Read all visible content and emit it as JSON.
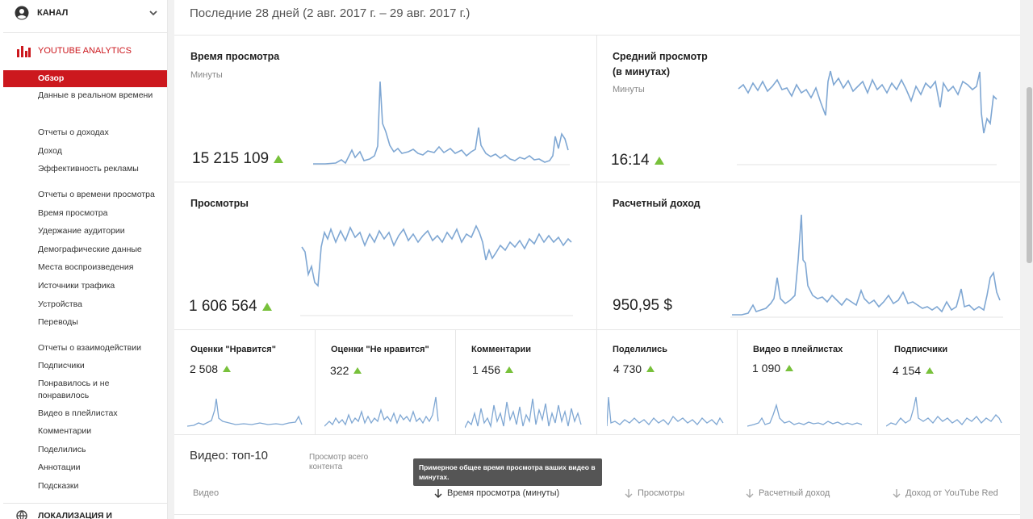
{
  "sidebar": {
    "channel_label": "КАНАЛ",
    "analytics_label": "YOUTUBE ANALYTICS",
    "items": [
      {
        "label": "Обзор",
        "active": true
      },
      {
        "label": "Данные в реальном времени"
      },
      {
        "label": "Отчеты о доходах"
      },
      {
        "label": "Доход"
      },
      {
        "label": "Эффективность рекламы"
      },
      {
        "label": "Отчеты о времени просмотра"
      },
      {
        "label": "Время просмотра"
      },
      {
        "label": "Удержание аудитории"
      },
      {
        "label": "Демографические данные"
      },
      {
        "label": "Места воспроизведения"
      },
      {
        "label": "Источники трафика"
      },
      {
        "label": "Устройства"
      },
      {
        "label": "Переводы"
      },
      {
        "label": "Отчеты о взаимодействии"
      },
      {
        "label": "Подписчики"
      },
      {
        "label": "Понравилось и не понравилось"
      },
      {
        "label": "Видео в плейлистах"
      },
      {
        "label": "Комментарии"
      },
      {
        "label": "Поделились"
      },
      {
        "label": "Аннотации"
      },
      {
        "label": "Подсказки"
      }
    ],
    "bottom_label": "ЛОКАЛИЗАЦИЯ И"
  },
  "period": "Последние 28 дней (2 авг. 2017 г. – 29 авг. 2017 г.)",
  "cards": {
    "watch_time": {
      "title": "Время просмотра",
      "sub": "Минуты",
      "value": "15 215 109",
      "trend": "up"
    },
    "avg_duration": {
      "title": "Средний просмотр (в минутах)",
      "sub": "Минуты",
      "value": "16:14",
      "trend": "up"
    },
    "views": {
      "title": "Просмотры",
      "value": "1 606 564",
      "trend": "up"
    },
    "revenue": {
      "title": "Расчетный доход",
      "value": "950,95 $"
    }
  },
  "small_cards": [
    {
      "title": "Оценки \"Нравится\"",
      "value": "2 508"
    },
    {
      "title": "Оценки \"Не нравится\"",
      "value": "322"
    },
    {
      "title": "Комментарии",
      "value": "1 456"
    },
    {
      "title": "Поделились",
      "value": "4 730"
    },
    {
      "title": "Видео в плейлистах",
      "value": "1 090"
    },
    {
      "title": "Подписчики",
      "value": "4 154"
    }
  ],
  "top10": {
    "title": "Видео: топ-10",
    "sub": "Просмотр всего контента",
    "tooltip": "Примерное общее время просмотра ваших видео в минутах.",
    "columns": [
      "Видео",
      "Время просмотра (минуты)",
      "Просмотры",
      "Расчетный доход",
      "Доход от YouTube Red"
    ]
  },
  "colors": {
    "accent": "#cc181e",
    "line": "#7fa7d3",
    "up": "#78c13b"
  },
  "icons": {
    "avatar": "account-circle-icon",
    "chevron": "chevron-down-icon",
    "analytics": "bar-chart-icon",
    "sort": "arrow-down-icon",
    "globe": "globe-icon"
  }
}
